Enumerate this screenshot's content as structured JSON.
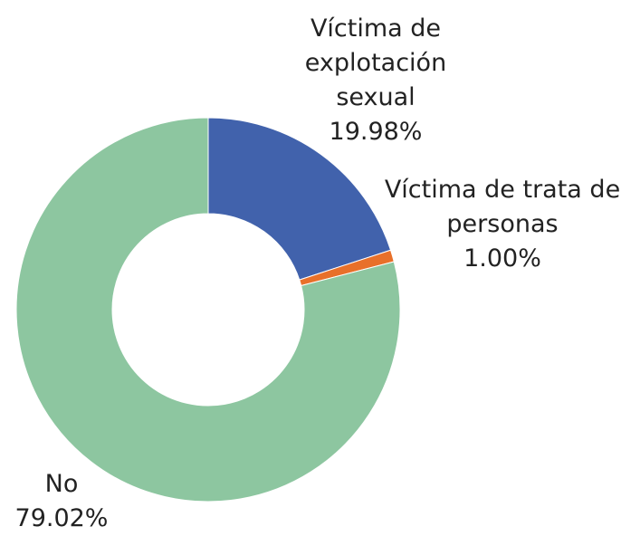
{
  "chart_data": {
    "type": "donut",
    "categories": [
      "Víctima de explotación sexual",
      "Víctima de trata de personas",
      "No"
    ],
    "values": [
      19.98,
      1.0,
      79.02
    ],
    "value_labels": [
      "19.98%",
      "1.00%",
      "79.02%"
    ],
    "colors": [
      "#4162ac",
      "#e8702a",
      "#8dc6a0"
    ]
  }
}
